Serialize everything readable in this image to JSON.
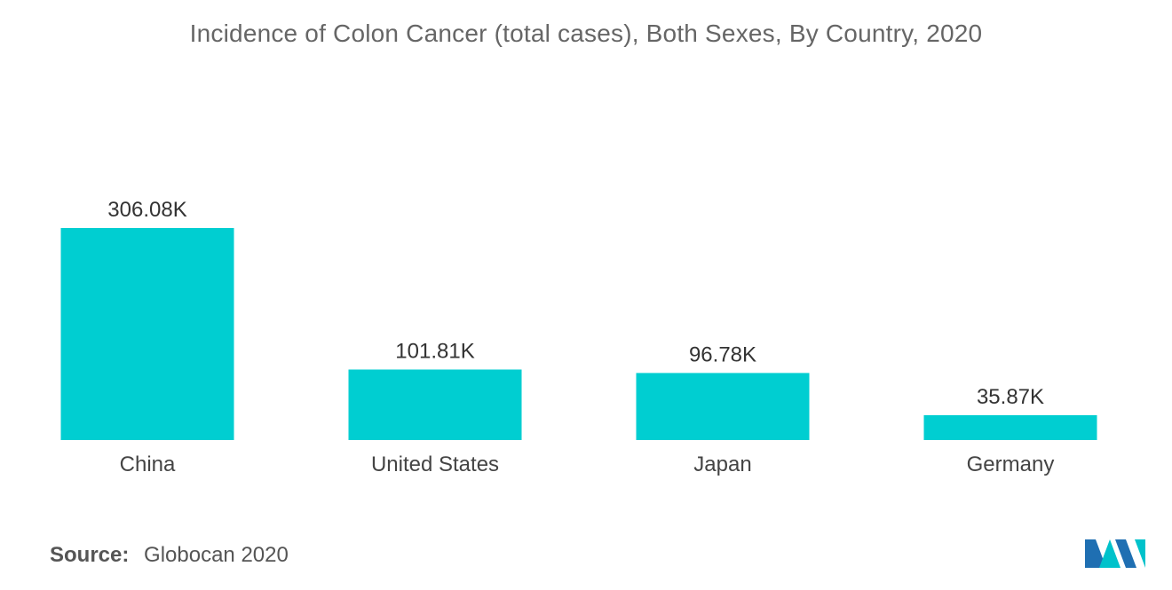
{
  "chart_data": {
    "type": "bar",
    "title": "Incidence of Colon Cancer (total cases), Both Sexes, By Country, 2020",
    "categories": [
      "China",
      "United States",
      "Japan",
      "Germany"
    ],
    "values": [
      306.08,
      101.81,
      96.78,
      35.87
    ],
    "data_labels": [
      "306.08K",
      "101.81K",
      "96.78K",
      "35.87K"
    ],
    "unit": "K",
    "xlabel": "",
    "ylabel": "",
    "ylim": [
      0,
      306.08
    ],
    "grid": false,
    "legend": "none",
    "bar_color": "#00CED1"
  },
  "source": {
    "label": "Source:",
    "text": "Globocan 2020"
  },
  "logo": {
    "icon": "mordor-intelligence-logo",
    "colors": [
      "#1f6fb2",
      "#00c2cb"
    ]
  }
}
